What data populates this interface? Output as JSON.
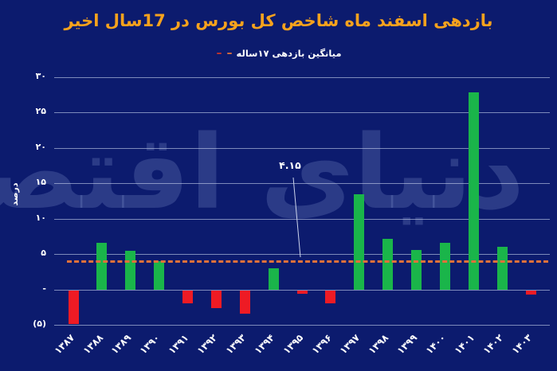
{
  "title": {
    "text": "بازدهی اسفند ماه شاخص کل بورس در 17سال اخیر",
    "color": "#f6a21d"
  },
  "legend": {
    "label": "میانگین بازدهی ۱۷ساله",
    "dashes": [
      "–",
      "–"
    ],
    "dash_colors": [
      "#e0713a",
      "#c8352a"
    ]
  },
  "watermark": {
    "text": "دنیای اقتصاد"
  },
  "chart_data": {
    "type": "bar",
    "title": "بازدهی اسفند ماه شاخص کل بورس در 17سال اخیر",
    "subtitle_legend": "میانگین بازدهی ۱۷ساله",
    "xlabel": "",
    "ylabel": "درصد",
    "ylim": [
      -5,
      30
    ],
    "grid": true,
    "legend_position": "top-center",
    "categories": [
      "۱۳۸۷",
      "۱۳۸۸",
      "۱۳۸۹",
      "۱۳۹۰",
      "۱۳۹۱",
      "۱۳۹۲",
      "۱۳۹۳",
      "۱۳۹۴",
      "۱۳۹۵",
      "۱۳۹۶",
      "۱۳۹۷",
      "۱۳۹۸",
      "۱۳۹۹",
      "۱۴۰۰",
      "۱۴۰۱",
      "۱۴۰۲",
      "۱۴۰۳"
    ],
    "categories_latin": [
      1387,
      1388,
      1389,
      1390,
      1391,
      1392,
      1393,
      1394,
      1395,
      1396,
      1397,
      1398,
      1399,
      1400,
      1401,
      1402,
      1403
    ],
    "values": [
      -4.8,
      6.6,
      5.5,
      4.0,
      -1.8,
      -2.5,
      -3.3,
      3.0,
      -0.5,
      -1.9,
      13.5,
      7.1,
      5.6,
      6.6,
      27.9,
      6.0,
      -0.6
    ],
    "yticks": [
      {
        "v": 30,
        "label": "۳۰"
      },
      {
        "v": 25,
        "label": "۲۵"
      },
      {
        "v": 20,
        "label": "۲۰"
      },
      {
        "v": 15,
        "label": "۱۵"
      },
      {
        "v": 10,
        "label": "۱۰"
      },
      {
        "v": 5,
        "label": "۵"
      },
      {
        "v": 0,
        "label": "-"
      },
      {
        "v": -5,
        "label": "(۵)"
      }
    ],
    "average_line": {
      "value": 4.15,
      "label": "۴.۱۵",
      "style": "dashed"
    },
    "colors": {
      "background": "#0c1b6e",
      "positive": "#1ab54a",
      "negative": "#ee1b24",
      "average": "#e0713a",
      "grid": "#c4cee8",
      "text": "#ffffff",
      "title": "#f6a21d"
    }
  }
}
